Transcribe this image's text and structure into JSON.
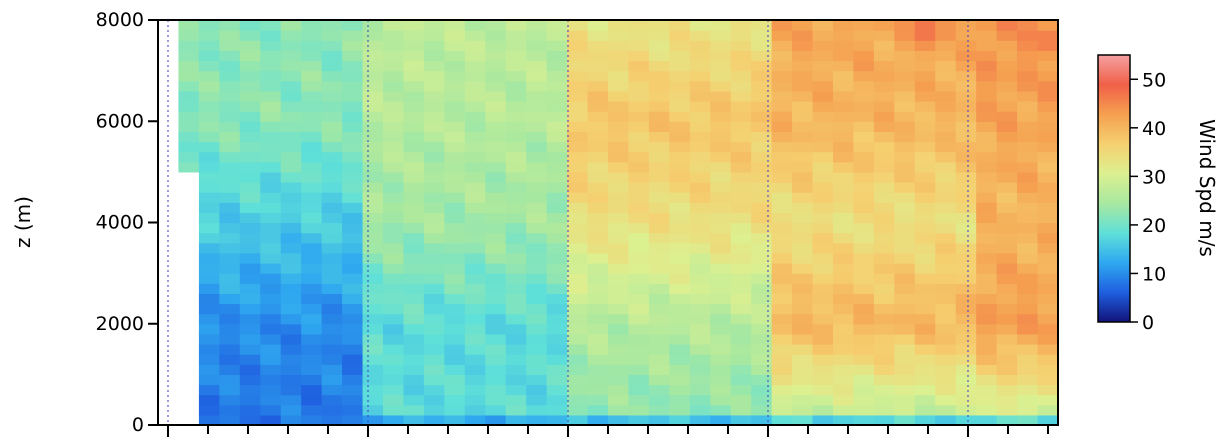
{
  "chart_data": {
    "type": "heatmap",
    "title": "",
    "xlabel": "",
    "ylabel": "z (m)",
    "ylim": [
      0,
      8000
    ],
    "yticks": [
      0,
      2000,
      4000,
      6000,
      8000
    ],
    "ytick_labels": [
      "0",
      "2000",
      "4000",
      "6000",
      "8000"
    ],
    "x_tick_labels": [],
    "grid": "dotted vertical lines at major x ticks",
    "colorbar": {
      "label": "Wind Spd m/s",
      "range": [
        0,
        55
      ],
      "ticks": [
        0,
        10,
        20,
        30,
        40,
        50
      ],
      "tick_labels": [
        "0",
        "10",
        "20",
        "30",
        "40",
        "50"
      ],
      "colormap": [
        "#12127a",
        "#1f5fe0",
        "#2fa8f0",
        "#5fe0d8",
        "#a8e8a0",
        "#dcf090",
        "#f5d070",
        "#f5a050",
        "#f06048",
        "#f5a0a0"
      ]
    },
    "x_columns": 44,
    "z_levels": [
      0,
      2000,
      4000,
      6000,
      8000
    ],
    "z_start_by_column_range": [
      {
        "columns": [
          0,
          0
        ],
        "z_start": null
      },
      {
        "columns": [
          1,
          1
        ],
        "z_start": 5000
      },
      {
        "columns": [
          2,
          43
        ],
        "z_start": 0
      }
    ],
    "wind_speed_profiles": [
      {
        "columns": [
          1,
          9
        ],
        "values_at_z": [
          8,
          10,
          16,
          22,
          22
        ]
      },
      {
        "columns": [
          10,
          19
        ],
        "values_at_z": [
          18,
          18,
          24,
          26,
          27
        ]
      },
      {
        "columns": [
          20,
          29
        ],
        "values_at_z": [
          22,
          26,
          34,
          38,
          33
        ]
      },
      {
        "columns": [
          30,
          39
        ],
        "values_at_z": [
          26,
          40,
          34,
          40,
          42
        ]
      },
      {
        "columns": [
          40,
          43
        ],
        "values_at_z": [
          28,
          43,
          40,
          42,
          44
        ]
      }
    ],
    "hotspots": [
      {
        "column": 37,
        "z": 7800,
        "value": 48
      },
      {
        "column": 43,
        "z": 7600,
        "value": 47
      }
    ]
  }
}
